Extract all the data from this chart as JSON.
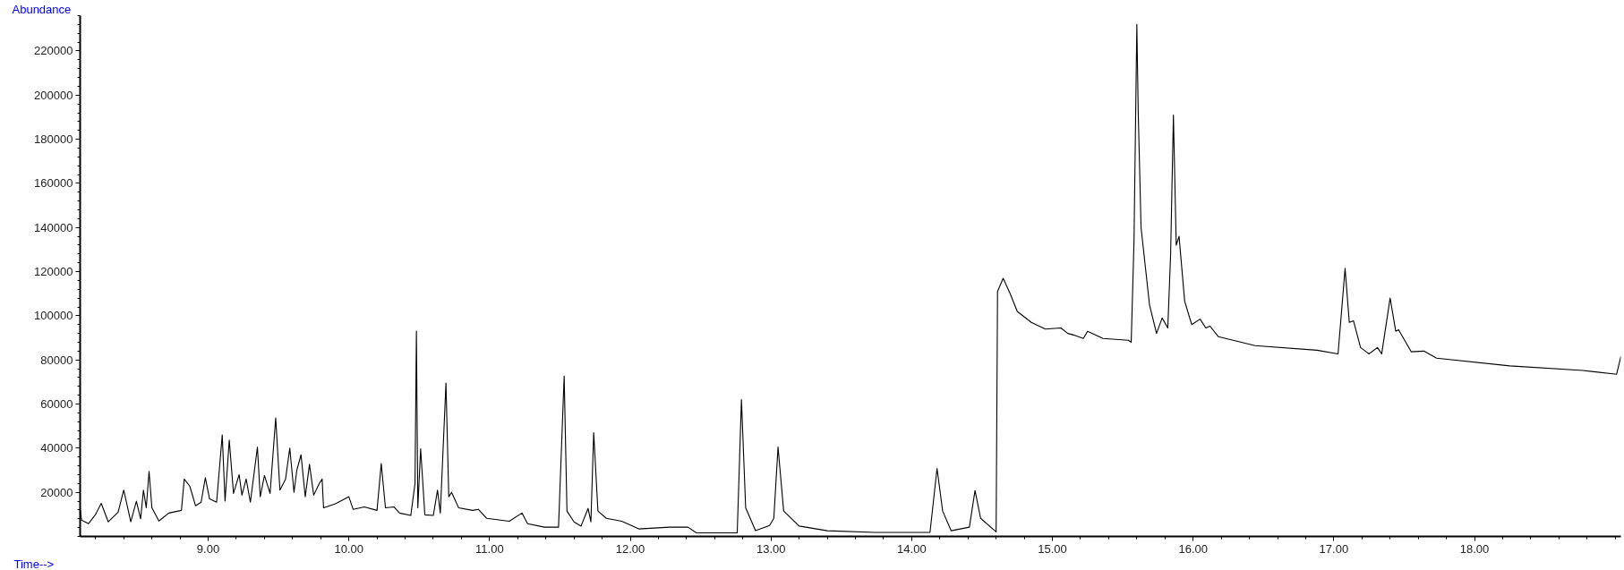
{
  "chart_data": {
    "type": "line",
    "xlabel": "Time-->",
    "ylabel": "Abundance",
    "xlim": [
      8.09,
      19.04
    ],
    "ylim": [
      0,
      236000
    ],
    "xticks": [
      {
        "value": 9,
        "label": "9.00"
      },
      {
        "value": 10,
        "label": "10.00"
      },
      {
        "value": 11,
        "label": "11.00"
      },
      {
        "value": 12,
        "label": "12.00"
      },
      {
        "value": 13,
        "label": "13.00"
      },
      {
        "value": 14,
        "label": "14.00"
      },
      {
        "value": 15,
        "label": "15.00"
      },
      {
        "value": 16,
        "label": "16.00"
      },
      {
        "value": 17,
        "label": "17.00"
      },
      {
        "value": 18,
        "label": "18.00"
      }
    ],
    "yticks": [
      20000,
      40000,
      60000,
      80000,
      100000,
      120000,
      140000,
      160000,
      180000,
      200000,
      220000
    ],
    "series": [
      {
        "color": "#000000",
        "x": [
          8.09,
          8.1,
          8.15,
          8.2,
          8.24,
          8.29,
          8.36,
          8.4,
          8.45,
          8.49,
          8.52,
          8.54,
          8.56,
          8.58,
          8.6,
          8.65,
          8.72,
          8.81,
          8.83,
          8.87,
          8.91,
          8.95,
          8.98,
          9.01,
          9.06,
          9.1,
          9.12,
          9.15,
          9.18,
          9.22,
          9.24,
          9.27,
          9.3,
          9.35,
          9.37,
          9.4,
          9.44,
          9.48,
          9.51,
          9.55,
          9.58,
          9.61,
          9.63,
          9.66,
          9.69,
          9.72,
          9.75,
          9.79,
          9.81,
          9.82,
          9.9,
          9.95,
          10.0,
          10.03,
          10.11,
          10.2,
          10.23,
          10.26,
          10.32,
          10.36,
          10.44,
          10.47,
          10.48,
          10.49,
          10.51,
          10.54,
          10.6,
          10.63,
          10.65,
          10.69,
          10.71,
          10.73,
          10.78,
          10.88,
          10.92,
          10.98,
          11.14,
          11.23,
          11.27,
          11.39,
          11.49,
          11.53,
          11.55,
          11.6,
          11.65,
          11.7,
          11.72,
          11.74,
          11.77,
          11.83,
          11.94,
          12.06,
          12.28,
          12.41,
          12.47,
          12.76,
          12.79,
          12.82,
          12.89,
          12.99,
          13.02,
          13.05,
          13.09,
          13.2,
          13.4,
          13.74,
          14.13,
          14.18,
          14.22,
          14.28,
          14.41,
          14.45,
          14.49,
          14.6,
          14.61,
          14.65,
          14.7,
          14.75,
          14.85,
          14.95,
          15.06,
          15.11,
          15.15,
          15.22,
          15.25,
          15.36,
          15.54,
          15.56,
          15.58,
          15.6,
          15.61,
          15.63,
          15.69,
          15.74,
          15.78,
          15.82,
          15.84,
          15.86,
          15.88,
          15.9,
          15.94,
          15.99,
          16.05,
          16.09,
          16.12,
          16.18,
          16.44,
          16.88,
          17.03,
          17.08,
          17.11,
          17.14,
          17.19,
          17.25,
          17.31,
          17.34,
          17.4,
          17.44,
          17.46,
          17.55,
          17.64,
          17.73,
          18.25,
          18.77,
          19.01,
          19.04
        ],
        "values": [
          13000,
          7400,
          5800,
          10000,
          15000,
          6600,
          11000,
          21000,
          6600,
          16000,
          8000,
          21000,
          13000,
          29500,
          13000,
          7000,
          10600,
          11800,
          26000,
          22700,
          13900,
          15500,
          26600,
          17000,
          15500,
          46000,
          16000,
          43700,
          19500,
          28000,
          18700,
          26000,
          15500,
          40500,
          18000,
          27600,
          19500,
          53700,
          21000,
          26000,
          40000,
          20000,
          30000,
          37000,
          18000,
          32700,
          18700,
          24000,
          26000,
          13000,
          14700,
          16300,
          18000,
          12300,
          13400,
          11800,
          33000,
          13000,
          13400,
          10600,
          9500,
          24000,
          93000,
          13000,
          39700,
          9800,
          9500,
          21000,
          10600,
          69500,
          18000,
          20000,
          13000,
          11800,
          12300,
          8200,
          6900,
          10600,
          5800,
          4200,
          4200,
          72700,
          11500,
          6600,
          4700,
          12700,
          6600,
          47000,
          11500,
          8200,
          6900,
          3400,
          4200,
          4200,
          1600,
          1600,
          62000,
          13000,
          2600,
          5000,
          8200,
          40500,
          11500,
          4700,
          2600,
          1800,
          1800,
          30800,
          11500,
          2600,
          4200,
          20800,
          8200,
          2100,
          111000,
          117000,
          110000,
          102000,
          97000,
          94000,
          94500,
          92000,
          91300,
          89700,
          93000,
          89700,
          88900,
          88000,
          134000,
          232000,
          192000,
          140000,
          105000,
          92000,
          99000,
          94500,
          127600,
          191000,
          132000,
          136000,
          106600,
          96000,
          98500,
          94500,
          95300,
          90500,
          86500,
          84400,
          82700,
          121500,
          97000,
          97700,
          85600,
          82700,
          85600,
          82700,
          108000,
          93000,
          93700,
          83700,
          84000,
          80800,
          77300,
          75200,
          73500,
          81600
        ]
      }
    ]
  }
}
